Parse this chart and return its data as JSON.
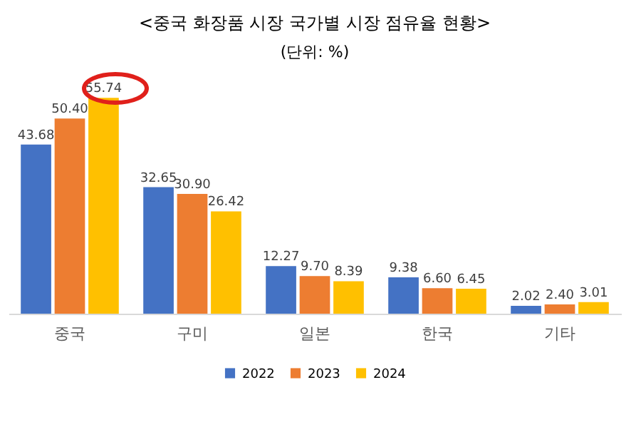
{
  "chart_data": {
    "type": "bar",
    "title": "<중국 화장품 시장 국가별 시장 점유율 현황>",
    "subtitle": "(단위: %)",
    "categories": [
      "중국",
      "구미",
      "일본",
      "한국",
      "기타"
    ],
    "series": [
      {
        "name": "2022",
        "color": "#4472c4",
        "values": [
          43.68,
          32.65,
          12.27,
          9.38,
          2.02
        ],
        "value_labels": [
          "43.68",
          "32.65",
          "12.27",
          "9.38",
          "2.02"
        ]
      },
      {
        "name": "2023",
        "color": "#ed7d31",
        "values": [
          50.4,
          30.9,
          9.7,
          6.6,
          2.4
        ],
        "value_labels": [
          "50.40",
          "30.90",
          "9.70",
          "6.60",
          "2.40"
        ]
      },
      {
        "name": "2024",
        "color": "#ffc000",
        "values": [
          55.74,
          26.42,
          8.39,
          6.45,
          3.01
        ],
        "value_labels": [
          "55.74",
          "26.42",
          "8.39",
          "6.45",
          "3.01"
        ]
      }
    ],
    "grid": false,
    "legend": "bottom"
  }
}
